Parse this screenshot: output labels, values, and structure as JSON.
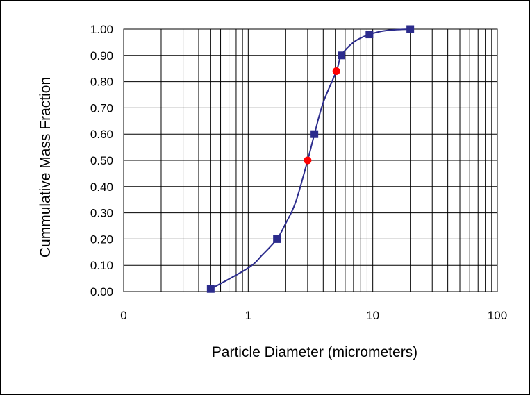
{
  "chart_data": {
    "type": "scatter",
    "xlabel": "Particle Diameter (micrometers)",
    "ylabel": "Cummulative Mass Fraction",
    "x_scale": "log",
    "xlim": [
      0.1,
      100
    ],
    "ylim": [
      0,
      1
    ],
    "x_tick_labels": [
      "0",
      "1",
      "10",
      "100"
    ],
    "x_tick_values": [
      0.1,
      1,
      10,
      100
    ],
    "y_tick_labels": [
      "0.00",
      "0.10",
      "0.20",
      "0.30",
      "0.40",
      "0.50",
      "0.60",
      "0.70",
      "0.80",
      "0.90",
      "1.00"
    ],
    "y_tick_values": [
      0,
      0.1,
      0.2,
      0.3,
      0.4,
      0.5,
      0.6,
      0.7,
      0.8,
      0.9,
      1.0
    ],
    "grid": true,
    "legend": "none",
    "series": [
      {
        "marker": "square",
        "color": "#2b2b8c",
        "x": [
          0.5,
          1.7,
          3.4,
          5.6,
          9.4,
          20
        ],
        "y": [
          0.01,
          0.2,
          0.6,
          0.9,
          0.98,
          1.0
        ]
      },
      {
        "marker": "circle",
        "color": "#ff0000",
        "x": [
          3.0,
          5.1
        ],
        "y": [
          0.5,
          0.84
        ]
      }
    ],
    "curve": {
      "color": "#2b2b8c",
      "x": [
        0.5,
        1.0,
        1.3,
        1.7,
        2.0,
        2.4,
        3.0,
        3.4,
        4.0,
        5.1,
        5.6,
        7.0,
        9.4,
        13.0,
        20.0
      ],
      "y": [
        0.01,
        0.09,
        0.14,
        0.2,
        0.26,
        0.34,
        0.5,
        0.6,
        0.72,
        0.84,
        0.9,
        0.95,
        0.98,
        0.995,
        1.0
      ]
    }
  }
}
